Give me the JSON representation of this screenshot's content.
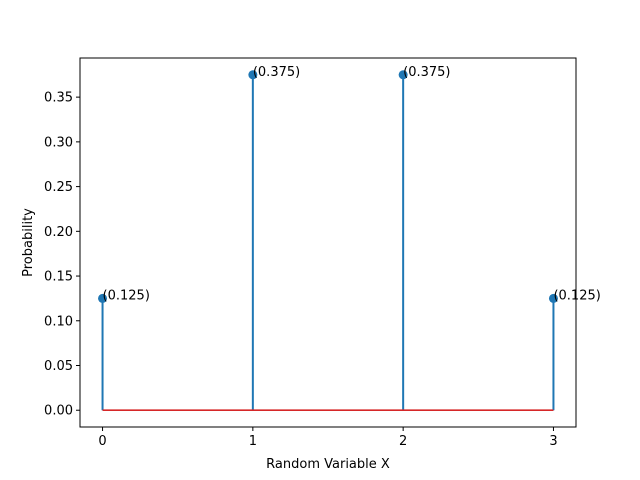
{
  "chart_data": {
    "type": "stem",
    "title": "",
    "xlabel": "Random Variable X",
    "ylabel": "Probability",
    "x": [
      0,
      1,
      2,
      3
    ],
    "y": [
      0.125,
      0.375,
      0.375,
      0.125
    ],
    "data_labels": [
      "(0.125)",
      "(0.375)",
      "(0.375)",
      "(0.125)"
    ],
    "xlim": [
      -0.15,
      3.15
    ],
    "ylim": [
      -0.01875,
      0.39375
    ],
    "xticks": [
      0,
      1,
      2,
      3
    ],
    "xtick_labels": [
      "0",
      "1",
      "2",
      "3"
    ],
    "yticks": [
      0,
      0.05,
      0.1,
      0.15,
      0.2,
      0.25,
      0.3,
      0.35
    ],
    "ytick_labels": [
      "0.00",
      "0.05",
      "0.10",
      "0.15",
      "0.20",
      "0.25",
      "0.30",
      "0.35"
    ],
    "grid": false,
    "stem_color": "#1f77b4",
    "baseline_color": "#d62728"
  }
}
